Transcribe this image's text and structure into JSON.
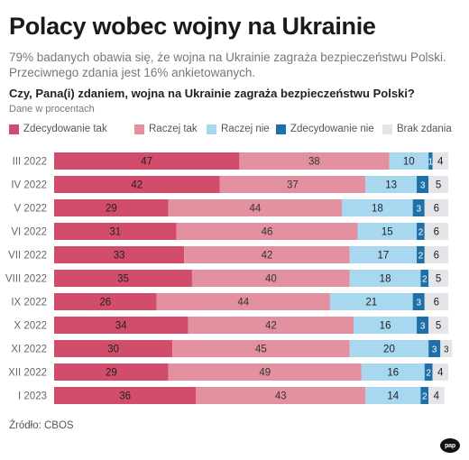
{
  "header": {
    "title": "Polacy wobec wojny na Ukrainie",
    "subtitle": "79% badanych obawia się, że wojna na Ukrainie zagraża bezpieczeństwu Polski. Przeciwnego zdania jest 16% ankietowanych.",
    "question": "Czy, Pana(i) zdaniem, wojna na Ukrainie zagraża bezpieczeństwu Polski?",
    "unit": "Dane w procentach"
  },
  "footer": {
    "source": "Źródło: CBOS",
    "logo_text": "pap"
  },
  "colors": {
    "zdecydowanie_tak": "#d24d6c",
    "raczej_tak": "#e391a0",
    "raczej_nie": "#a8d8f0",
    "zdecydowanie_nie": "#1f6fa8",
    "brak_zdania": "#e3e5e8"
  },
  "chart_data": {
    "type": "bar",
    "orientation": "horizontal",
    "stacked": true,
    "categories": [
      "III 2022",
      "IV 2022",
      "V 2022",
      "VI 2022",
      "VII 2022",
      "VIII 2022",
      "IX 2022",
      "X 2022",
      "XI 2022",
      "XII 2022",
      "I 2023"
    ],
    "series": [
      {
        "name": "Zdecydowanie tak",
        "color": "#d24d6c",
        "values": [
          47,
          42,
          29,
          31,
          33,
          35,
          26,
          34,
          30,
          29,
          36
        ]
      },
      {
        "name": "Raczej tak",
        "color": "#e391a0",
        "values": [
          38,
          37,
          44,
          46,
          42,
          40,
          44,
          42,
          45,
          49,
          43
        ]
      },
      {
        "name": "Raczej nie",
        "color": "#a8d8f0",
        "values": [
          10,
          13,
          18,
          15,
          17,
          18,
          21,
          16,
          20,
          16,
          14
        ]
      },
      {
        "name": "Zdecydowanie nie",
        "color": "#1f6fa8",
        "values": [
          1,
          3,
          3,
          2,
          2,
          2,
          3,
          3,
          3,
          2,
          2
        ]
      },
      {
        "name": "Brak zdania",
        "color": "#e3e5e8",
        "values": [
          4,
          5,
          6,
          6,
          6,
          5,
          6,
          5,
          3,
          4,
          4
        ]
      }
    ],
    "xlim": [
      0,
      100
    ],
    "grid": false,
    "legend": "top"
  }
}
